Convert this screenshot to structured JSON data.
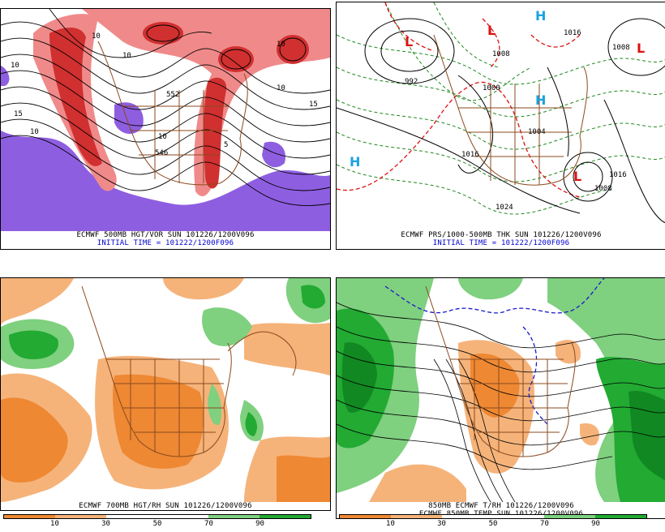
{
  "panels": {
    "top_left": {
      "caption_line1": "ECMWF 500MB HGT/VOR SUN 101226/1200V096",
      "caption_line2": "INITIAL TIME = 101222/1200F096",
      "labels": [
        "10",
        "10",
        "15",
        "10",
        "10",
        "552",
        "10",
        "15",
        "5",
        "10",
        "546",
        "10"
      ]
    },
    "top_right": {
      "caption_line1": "ECMWF PRS/1000-500MB THK SUN 101226/1200V096",
      "caption_line2": "INITIAL TIME = 101222/1200F096",
      "labels": [
        "992",
        "1000",
        "1008",
        "1016",
        "1004",
        "1008",
        "1016",
        "1008",
        "1024",
        "1016"
      ],
      "highs": [
        "H",
        "H",
        "H"
      ],
      "lows": [
        "L",
        "L",
        "L",
        "L"
      ]
    },
    "bottom_left": {
      "caption_line1": "ECMWF 700MB HGT/RH SUN 101226/1200V096",
      "colorbar_ticks": [
        "10",
        "30",
        "50",
        "70",
        "90"
      ]
    },
    "bottom_right": {
      "caption_line1": "850MB ECMWF T/RH 101226/1200V096",
      "caption_line2": "ECMWF 850MB TEMP SUN 101226/1200V096",
      "colorbar_ticks": [
        "10",
        "30",
        "50",
        "70",
        "90"
      ]
    }
  },
  "colors": {
    "rh_dry_dark": "#ee8833",
    "rh_dry_light": "#f5b37a",
    "rh_moist_light": "#7fd07f",
    "rh_moist_dark": "#22aa33",
    "rh_moist_deep": "#118822",
    "vort_light": "#f08a8a",
    "vort_dark": "#d03030",
    "vort_neg": "#8e5ee0",
    "coast": "#8b4a1e",
    "thickness": "#1f8a1f",
    "isobar_warm": "#dd1111",
    "high_color": "#1aa3e0",
    "low_color": "#dd1111"
  }
}
